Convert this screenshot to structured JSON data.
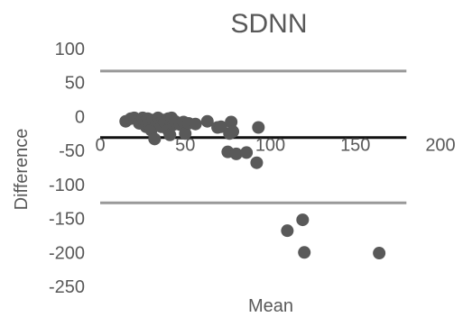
{
  "chart_data": {
    "type": "scatter",
    "title": "SDNN",
    "xlabel": "Mean",
    "ylabel": "Difference",
    "xlim": [
      0,
      200
    ],
    "ylim": [
      -250,
      100
    ],
    "x_ticks": [
      "0",
      "50",
      "100",
      "150",
      "200"
    ],
    "y_ticks": [
      "100",
      "50",
      "0",
      "-50",
      "-100",
      "-150",
      "-200",
      "-250"
    ],
    "grid": false,
    "legend": "none",
    "reference_lines": [
      {
        "role": "upper limit of agreement",
        "y": 67,
        "x_range": [
          0,
          180
        ],
        "color": "#999999"
      },
      {
        "role": "mean difference",
        "y": -31,
        "x_range": [
          0,
          180
        ],
        "color": "#111111"
      },
      {
        "role": "lower limit of agreement",
        "y": -127,
        "x_range": [
          0,
          180
        ],
        "color": "#999999"
      }
    ],
    "marker_color": "#595959",
    "points": [
      {
        "x": 15,
        "y": -7
      },
      {
        "x": 18,
        "y": -3
      },
      {
        "x": 20,
        "y": -2
      },
      {
        "x": 22,
        "y": -5
      },
      {
        "x": 23,
        "y": -10
      },
      {
        "x": 25,
        "y": -2
      },
      {
        "x": 26,
        "y": -8
      },
      {
        "x": 27,
        "y": -15
      },
      {
        "x": 28,
        "y": -3
      },
      {
        "x": 29,
        "y": -12
      },
      {
        "x": 30,
        "y": -20
      },
      {
        "x": 31,
        "y": -5
      },
      {
        "x": 32,
        "y": -33
      },
      {
        "x": 33,
        "y": -7
      },
      {
        "x": 34,
        "y": -2
      },
      {
        "x": 35,
        "y": -10
      },
      {
        "x": 36,
        "y": -15
      },
      {
        "x": 37,
        "y": -5
      },
      {
        "x": 38,
        "y": -8
      },
      {
        "x": 40,
        "y": -3
      },
      {
        "x": 40,
        "y": -20
      },
      {
        "x": 41,
        "y": -27
      },
      {
        "x": 42,
        "y": -2
      },
      {
        "x": 43,
        "y": -12
      },
      {
        "x": 44,
        "y": -7
      },
      {
        "x": 47,
        "y": -12
      },
      {
        "x": 49,
        "y": -8
      },
      {
        "x": 50,
        "y": -25
      },
      {
        "x": 52,
        "y": -10
      },
      {
        "x": 56,
        "y": -11
      },
      {
        "x": 63,
        "y": -7
      },
      {
        "x": 69,
        "y": -16
      },
      {
        "x": 71,
        "y": -15
      },
      {
        "x": 76,
        "y": -25
      },
      {
        "x": 77,
        "y": -8
      },
      {
        "x": 78,
        "y": -22
      },
      {
        "x": 75,
        "y": -52
      },
      {
        "x": 80,
        "y": -55
      },
      {
        "x": 86,
        "y": -53
      },
      {
        "x": 93,
        "y": -16
      },
      {
        "x": 92,
        "y": -68
      },
      {
        "x": 110,
        "y": -168
      },
      {
        "x": 119,
        "y": -152
      },
      {
        "x": 120,
        "y": -200
      },
      {
        "x": 164,
        "y": -201
      }
    ]
  }
}
